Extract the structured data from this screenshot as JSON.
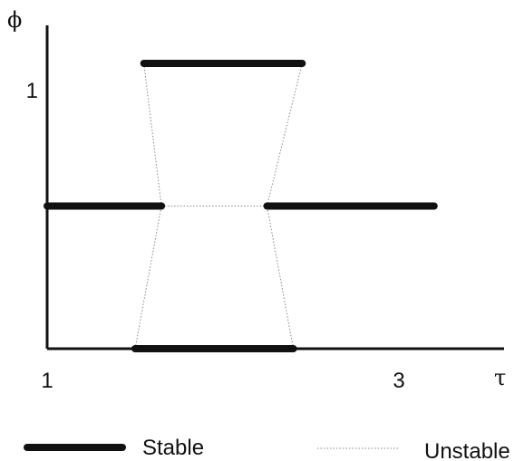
{
  "chart_data": {
    "type": "line",
    "ylabel": "ϕ",
    "xlabel": "τ",
    "x_tick_labels": [
      {
        "x": 1,
        "label": "1"
      },
      {
        "x": 3,
        "label": "3"
      }
    ],
    "y_tick_labels": [
      {
        "y": 1,
        "label": "1"
      }
    ],
    "xlim": [
      1,
      3.5
    ],
    "ylim": [
      0,
      1.15
    ],
    "grid": false,
    "legend_position": "bottom",
    "series": [
      {
        "name": "Stable",
        "style": "thick-solid",
        "color": "#111111",
        "segments": [
          [
            {
              "x": 1.0,
              "y": 0.5
            },
            {
              "x": 1.65,
              "y": 0.5
            }
          ],
          [
            {
              "x": 2.25,
              "y": 0.5
            },
            {
              "x": 3.2,
              "y": 0.5
            }
          ],
          [
            {
              "x": 1.55,
              "y": 1.0
            },
            {
              "x": 2.45,
              "y": 1.0
            }
          ],
          [
            {
              "x": 1.5,
              "y": 0.0
            },
            {
              "x": 2.4,
              "y": 0.0
            }
          ]
        ]
      },
      {
        "name": "Unstable",
        "style": "dotted",
        "color": "#888888",
        "segments": [
          [
            {
              "x": 1.65,
              "y": 0.5
            },
            {
              "x": 2.25,
              "y": 0.5
            }
          ],
          [
            {
              "x": 1.55,
              "y": 1.0
            },
            {
              "x": 1.65,
              "y": 0.5
            }
          ],
          [
            {
              "x": 1.5,
              "y": 0.0
            },
            {
              "x": 1.65,
              "y": 0.5
            }
          ],
          [
            {
              "x": 2.45,
              "y": 1.0
            },
            {
              "x": 2.25,
              "y": 0.5
            }
          ],
          [
            {
              "x": 2.4,
              "y": 0.0
            },
            {
              "x": 2.25,
              "y": 0.5
            }
          ]
        ]
      }
    ]
  }
}
